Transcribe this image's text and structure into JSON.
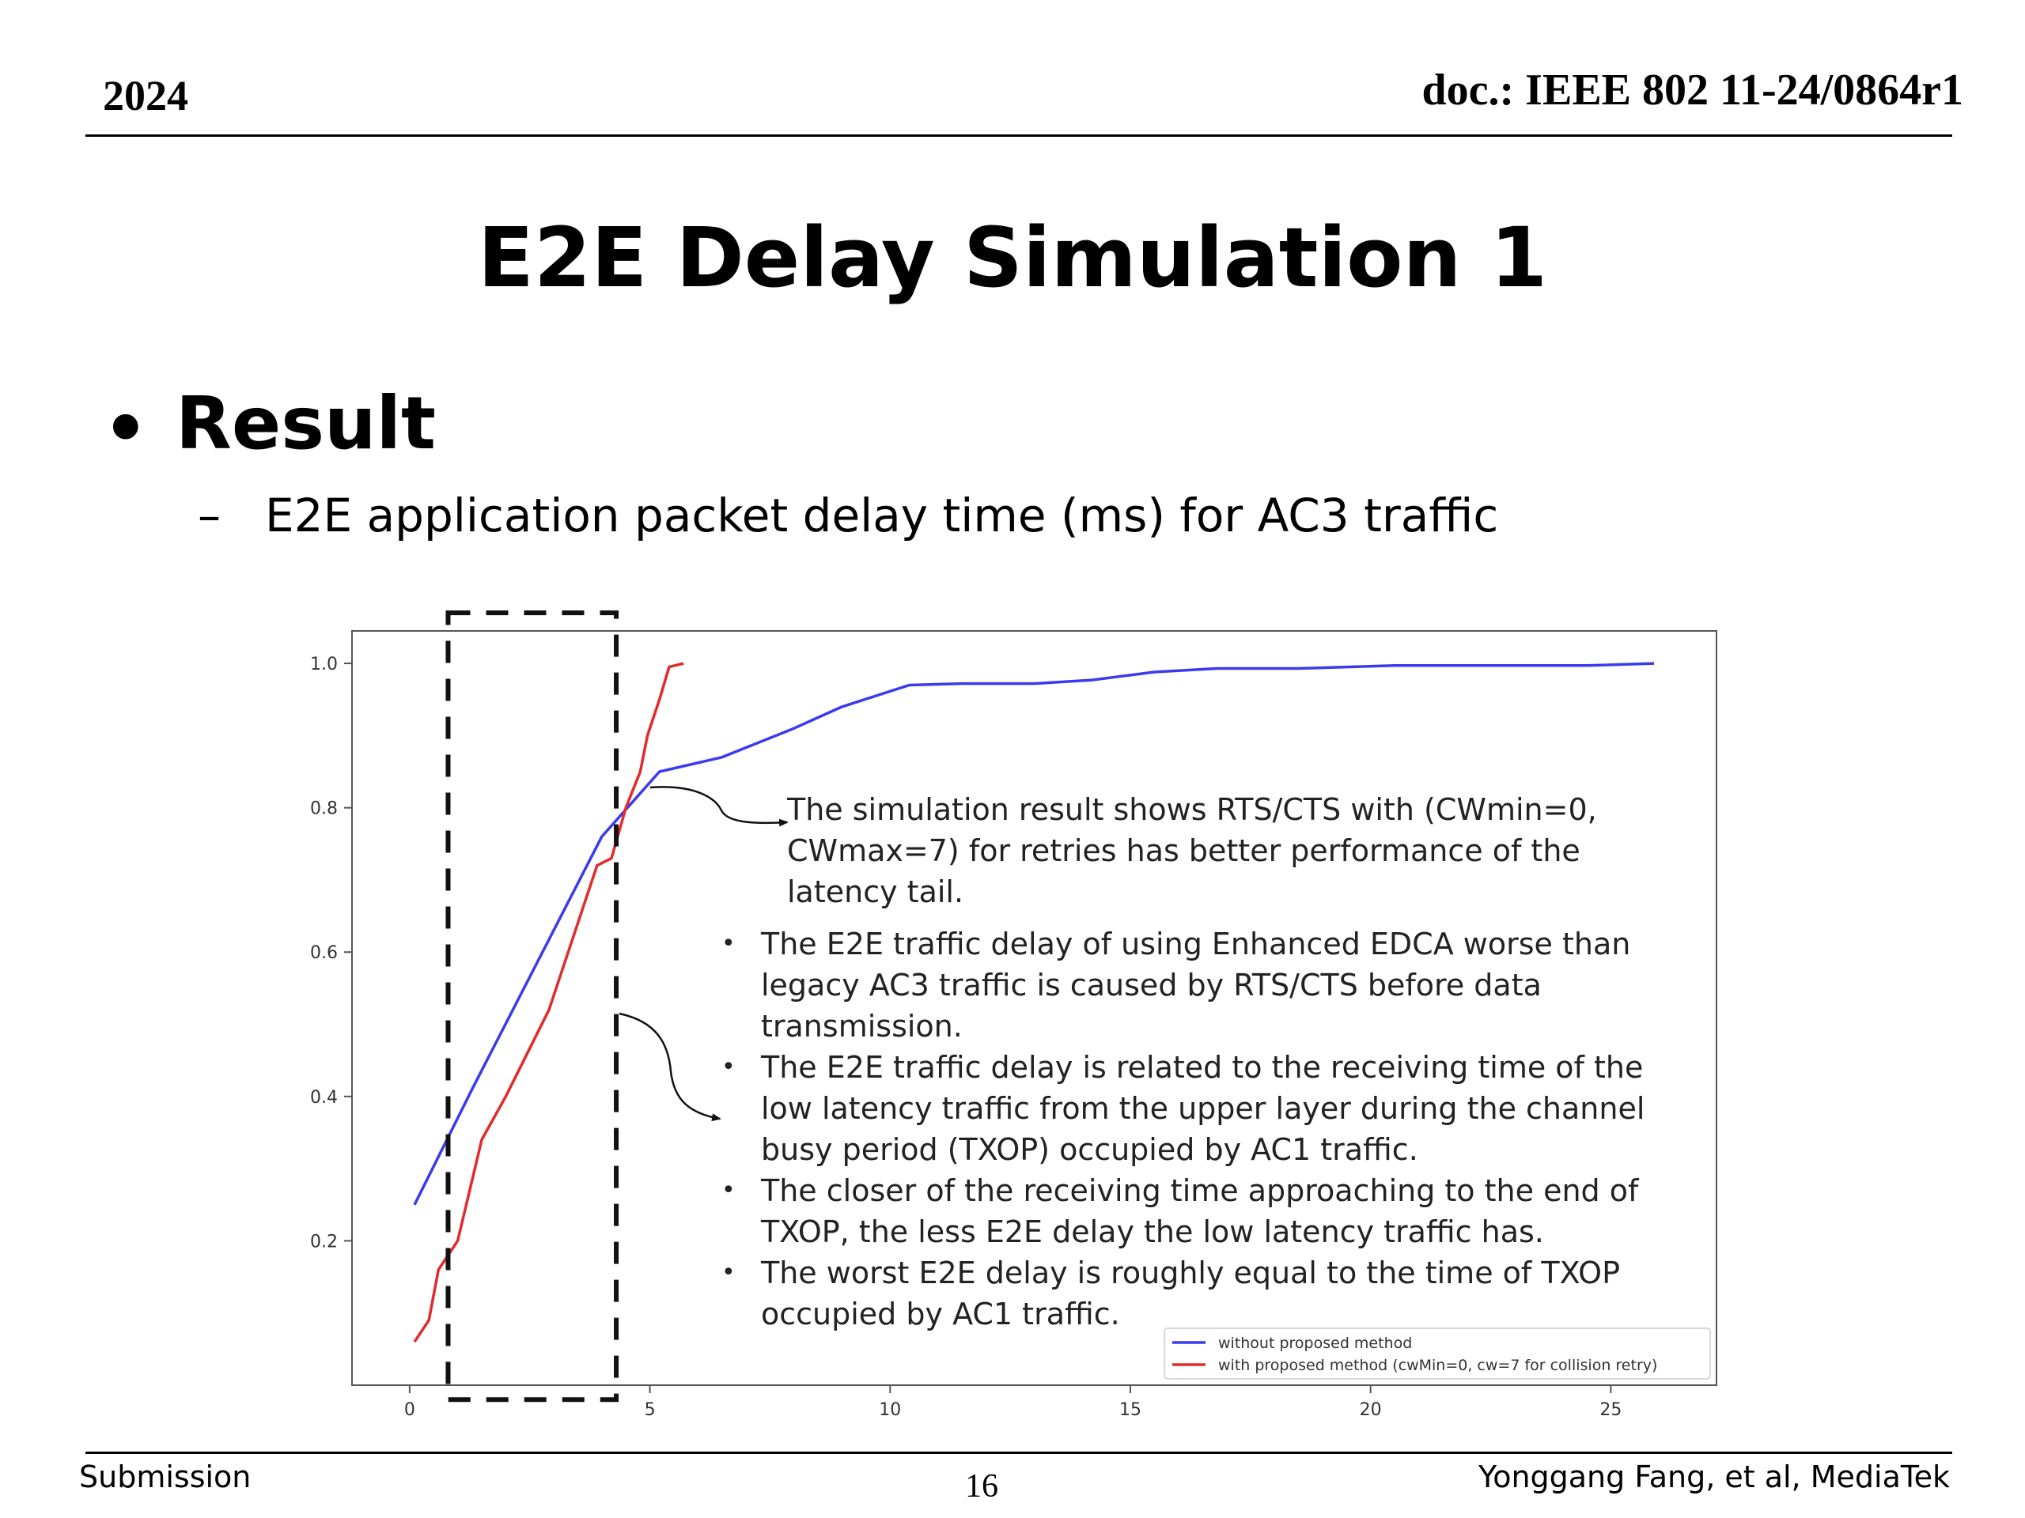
{
  "header": {
    "year": "2024",
    "doc_id": "doc.: IEEE 802 11-24/0864r1"
  },
  "title": "E2E Delay Simulation 1",
  "bullet": {
    "text": "Result",
    "sub_dash": "–",
    "sub_text": "E2E application packet delay time (ms) for AC3 traffic"
  },
  "annotation": {
    "callout": "The simulation result shows RTS/CTS with (CWmin=0, CWmax=7) for retries has better performance of the latency tail.",
    "notes": [
      "The E2E traffic delay of using Enhanced EDCA worse than legacy AC3 traffic is caused by RTS/CTS before data transmission.",
      "The E2E traffic delay is related to the receiving time of the low latency traffic from the upper layer during the channel busy period (TXOP) occupied by AC1 traffic.",
      "The closer of the receiving time approaching to the end of TXOP, the less E2E delay the low latency traffic has.",
      "The worst E2E delay is roughly equal to the time of TXOP occupied by AC1 traffic."
    ]
  },
  "footer": {
    "left": "Submission",
    "page": "16",
    "right": "Yonggang Fang, et al, MediaTek"
  },
  "chart_data": {
    "type": "line",
    "xlim": [
      -1.2,
      27.2
    ],
    "ylim": [
      0.0,
      1.045
    ],
    "x_ticks": [
      0,
      5,
      10,
      15,
      20,
      25
    ],
    "y_ticks": [
      0.2,
      0.4,
      0.6,
      0.8,
      1.0
    ],
    "x_tick_labels": [
      "0",
      "5",
      "10",
      "15",
      "20",
      "25"
    ],
    "y_tick_labels": [
      "0.2",
      "0.4",
      "0.6",
      "0.8",
      "1.0"
    ],
    "grid": false,
    "legend_position": "lower-right",
    "highlight_box": {
      "x": [
        0.8,
        4.3
      ],
      "y": [
        -0.02,
        1.07
      ],
      "style": "dashed"
    },
    "series": [
      {
        "name": "without proposed method",
        "color": "#3a3af0",
        "x": [
          0.1,
          1.3,
          4.0,
          5.2,
          6.5,
          8.0,
          9.0,
          10.4,
          11.5,
          13.0,
          14.2,
          15.5,
          16.8,
          18.5,
          20.5,
          22.5,
          24.5,
          25.9
        ],
        "y": [
          0.25,
          0.41,
          0.76,
          0.85,
          0.87,
          0.91,
          0.94,
          0.97,
          0.972,
          0.972,
          0.977,
          0.988,
          0.993,
          0.993,
          0.997,
          0.997,
          0.997,
          1.0
        ]
      },
      {
        "name": "with proposed method (cwMin=0, cw=7 for collision retry)",
        "color": "#e32a2a",
        "x": [
          0.1,
          0.4,
          0.6,
          0.9,
          1.0,
          1.5,
          2.0,
          2.9,
          3.9,
          4.2,
          4.5,
          4.8,
          4.95,
          5.2,
          5.4,
          5.7
        ],
        "y": [
          0.06,
          0.09,
          0.16,
          0.19,
          0.2,
          0.34,
          0.4,
          0.52,
          0.72,
          0.73,
          0.8,
          0.85,
          0.9,
          0.95,
          0.995,
          1.0
        ]
      }
    ]
  }
}
